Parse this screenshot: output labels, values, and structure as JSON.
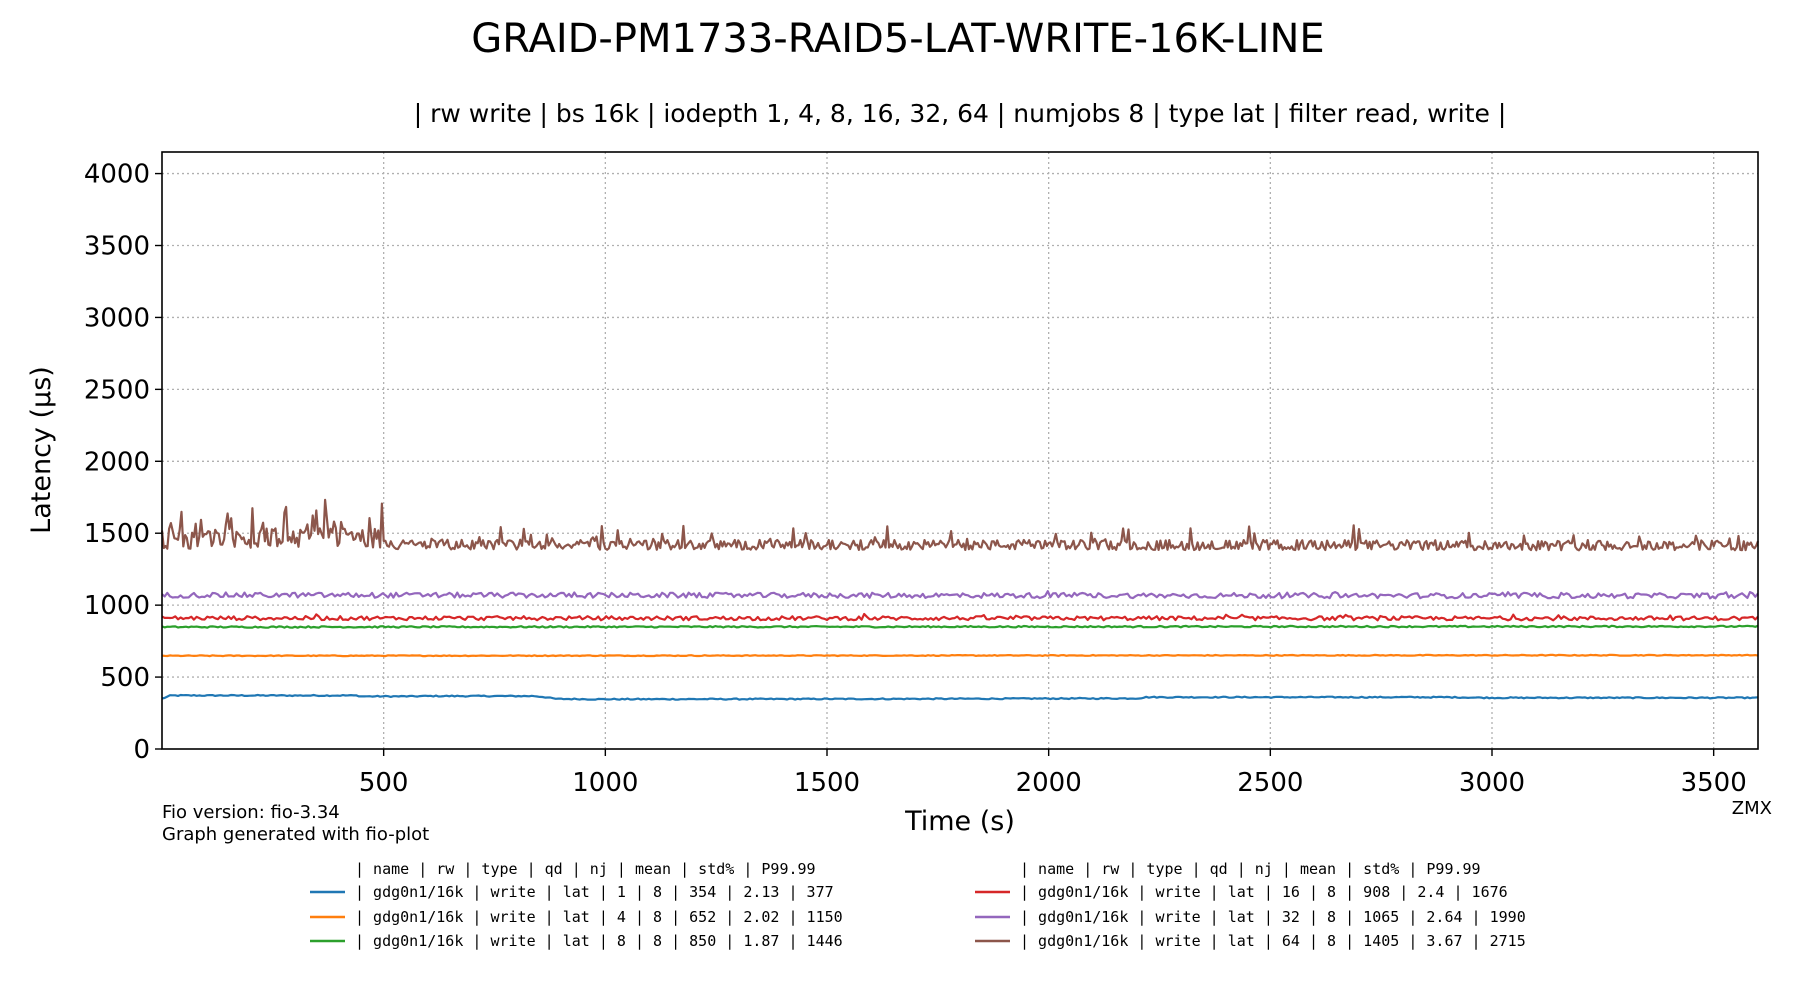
{
  "chart_data": {
    "type": "line",
    "title": "GRAID-PM1733-RAID5-LAT-WRITE-16K-LINE",
    "subtitle": "| rw write | bs 16k | iodepth 1, 4, 8, 16, 32, 64 | numjobs 8 | type lat | filter read, write |",
    "xlabel": "Time (s)",
    "ylabel": "Latency (µs)",
    "xlim": [
      0,
      3600
    ],
    "ylim": [
      0,
      4150
    ],
    "xticks": [
      500,
      1000,
      1500,
      2000,
      2500,
      3000,
      3500
    ],
    "yticks": [
      0,
      500,
      1000,
      1500,
      2000,
      2500,
      3000,
      3500,
      4000
    ],
    "grid": true,
    "legend_placement": "bottom",
    "series": [
      {
        "color": "#1f77b4",
        "mean": 354,
        "noise": 4,
        "points": [
          [
            0,
            350
          ],
          [
            20,
            372
          ],
          [
            200,
            372
          ],
          [
            440,
            372
          ],
          [
            450,
            366
          ],
          [
            560,
            366
          ],
          [
            600,
            368
          ],
          [
            840,
            368
          ],
          [
            860,
            362
          ],
          [
            890,
            348
          ],
          [
            1000,
            346
          ],
          [
            1600,
            348
          ],
          [
            2200,
            352
          ],
          [
            2220,
            360
          ],
          [
            2900,
            360
          ],
          [
            3000,
            356
          ],
          [
            3600,
            356
          ]
        ]
      },
      {
        "color": "#ff7f0e",
        "mean": 652,
        "noise": 3,
        "points": [
          [
            0,
            648
          ],
          [
            3600,
            652
          ]
        ]
      },
      {
        "color": "#2ca02c",
        "mean": 850,
        "noise": 5,
        "points": [
          [
            0,
            848
          ],
          [
            3600,
            852
          ]
        ]
      },
      {
        "color": "#d62728",
        "mean": 908,
        "noise": 14,
        "points": [
          [
            0,
            910
          ],
          [
            3600,
            908
          ]
        ]
      },
      {
        "color": "#9467bd",
        "mean": 1065,
        "noise": 18,
        "points": [
          [
            0,
            1070
          ],
          [
            3600,
            1065
          ]
        ]
      },
      {
        "color": "#8c564b",
        "mean": 1405,
        "noise": 70,
        "points": [
          [
            0,
            1440
          ],
          [
            500,
            1450
          ],
          [
            520,
            1410
          ],
          [
            3600,
            1405
          ]
        ]
      }
    ],
    "legend": {
      "header": "| name       | rw    | type | qd | nj | mean | std% | P99.99",
      "rows": [
        "| gdg0n1/16k | write |  lat |  1 |  8 |  354 | 2.13 |  377",
        "| gdg0n1/16k | write |  lat |  4 |  8 |  652 | 2.02 | 1150",
        "| gdg0n1/16k | write |  lat |  8 |  8 |  850 | 1.87 | 1446",
        "| gdg0n1/16k | write |  lat | 16 |  8 |  908 |  2.4 | 1676",
        "| gdg0n1/16k | write |  lat | 32 |  8 | 1065 | 2.64 | 1990",
        "| gdg0n1/16k | write |  lat | 64 |  8 | 1405 | 3.67 | 2715"
      ]
    },
    "footer_left": [
      "Fio version: fio-3.34",
      "Graph generated with fio-plot"
    ],
    "footer_right": "ZMX"
  }
}
